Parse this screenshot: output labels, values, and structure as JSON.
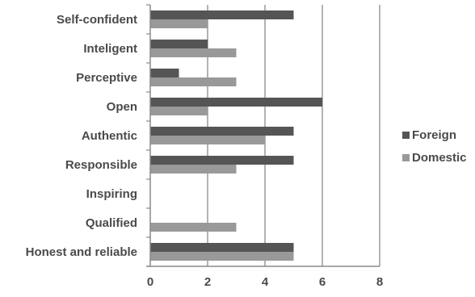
{
  "chart_data": {
    "type": "bar",
    "orientation": "horizontal",
    "categories": [
      "Self-confident",
      "Inteligent",
      "Perceptive",
      "Open",
      "Authentic",
      "Responsible",
      "Inspiring",
      "Qualified",
      "Honest and reliable"
    ],
    "series": [
      {
        "name": "Foreign",
        "color": "#555555",
        "values": [
          5,
          2,
          1,
          6,
          5,
          5,
          0,
          0,
          5
        ]
      },
      {
        "name": "Domestic",
        "color": "#999999",
        "values": [
          2,
          3,
          3,
          2,
          4,
          3,
          0,
          3,
          5
        ]
      }
    ],
    "xlim": [
      0,
      8
    ],
    "xticks": [
      "0",
      "2",
      "4",
      "6",
      "8"
    ],
    "grid": true,
    "legend_position": "right"
  }
}
